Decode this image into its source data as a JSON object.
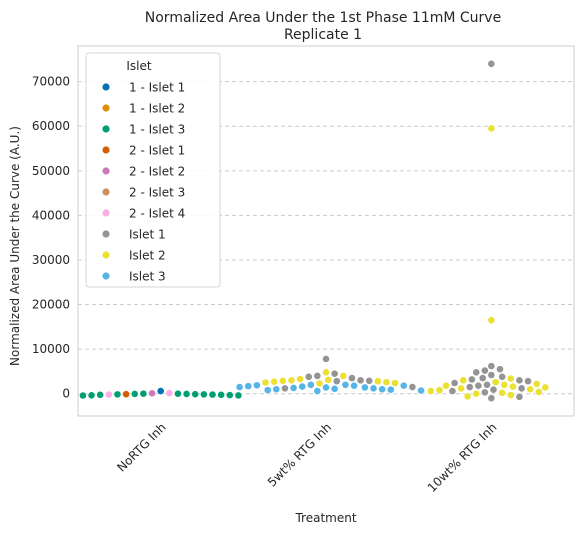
{
  "chart_data": {
    "type": "scatter",
    "kind": "swarm",
    "title": "Normalized Area Under the 1st Phase 11mM Curve",
    "subtitle": "Replicate 1",
    "xlabel": "Treatment",
    "ylabel": "Normalized Area Under the Curve (A.U.)",
    "categories": [
      "NoRTG Inh",
      "5wt% RTG Inh",
      "10wt% RTG Inh"
    ],
    "ylim": [
      -5000,
      78000
    ],
    "yticks": [
      0,
      10000,
      20000,
      30000,
      40000,
      50000,
      60000,
      70000
    ],
    "ytick_labels": [
      "0",
      "10000",
      "20000",
      "30000",
      "40000",
      "50000",
      "60000",
      "70000"
    ],
    "grid": "horizontal dashed",
    "legend": {
      "title": "Islet",
      "position": "top-left",
      "entries": [
        {
          "label": "1 - Islet 1",
          "color": "#0173b2"
        },
        {
          "label": "1 - Islet 2",
          "color": "#de8f05"
        },
        {
          "label": "1 - Islet 3",
          "color": "#029e73"
        },
        {
          "label": "2 - Islet 1",
          "color": "#d55e00"
        },
        {
          "label": "2 - Islet 2",
          "color": "#cc78bc"
        },
        {
          "label": "2 - Islet 3",
          "color": "#ca9161"
        },
        {
          "label": "2 - Islet 4",
          "color": "#fbafe4"
        },
        {
          "label": "Islet 1",
          "color": "#949494"
        },
        {
          "label": "Islet 2",
          "color": "#ece133"
        },
        {
          "label": "Islet 3",
          "color": "#56b4e9"
        }
      ]
    },
    "series": [
      {
        "name": "1 - Islet 1",
        "points": [
          {
            "x": "NoRTG Inh",
            "y": 600
          }
        ]
      },
      {
        "name": "1 - Islet 3",
        "points": [
          {
            "x": "NoRTG Inh",
            "y": 0
          },
          {
            "x": "NoRTG Inh",
            "y": -50
          },
          {
            "x": "NoRTG Inh",
            "y": -100
          },
          {
            "x": "NoRTG Inh",
            "y": -150
          },
          {
            "x": "NoRTG Inh",
            "y": -200
          },
          {
            "x": "NoRTG Inh",
            "y": -250
          },
          {
            "x": "NoRTG Inh",
            "y": -300
          },
          {
            "x": "NoRTG Inh",
            "y": -350
          },
          {
            "x": "NoRTG Inh",
            "y": -400
          },
          {
            "x": "NoRTG Inh",
            "y": -380
          },
          {
            "x": "NoRTG Inh",
            "y": -250
          },
          {
            "x": "NoRTG Inh",
            "y": -150
          },
          {
            "x": "NoRTG Inh",
            "y": -50
          },
          {
            "x": "NoRTG Inh",
            "y": 0
          }
        ]
      },
      {
        "name": "2 - Islet 1",
        "points": [
          {
            "x": "NoRTG Inh",
            "y": -100
          }
        ]
      },
      {
        "name": "2 - Islet 2",
        "points": [
          {
            "x": "NoRTG Inh",
            "y": 100
          }
        ]
      },
      {
        "name": "2 - Islet 4",
        "points": [
          {
            "x": "NoRTG Inh",
            "y": -200
          },
          {
            "x": "NoRTG Inh",
            "y": 150
          }
        ]
      },
      {
        "name": "Islet 1",
        "points": [
          {
            "x": "5wt% RTG Inh",
            "y": 7800
          },
          {
            "x": "5wt% RTG Inh",
            "y": 4500
          },
          {
            "x": "5wt% RTG Inh",
            "y": 4000
          },
          {
            "x": "5wt% RTG Inh",
            "y": 3800
          },
          {
            "x": "5wt% RTG Inh",
            "y": 3500
          },
          {
            "x": "5wt% RTG Inh",
            "y": 3000
          },
          {
            "x": "5wt% RTG Inh",
            "y": 2900
          },
          {
            "x": "5wt% RTG Inh",
            "y": 2800
          },
          {
            "x": "5wt% RTG Inh",
            "y": 1500
          },
          {
            "x": "5wt% RTG Inh",
            "y": 1200
          },
          {
            "x": "10wt% RTG Inh",
            "y": 74000
          },
          {
            "x": "10wt% RTG Inh",
            "y": 6200
          },
          {
            "x": "10wt% RTG Inh",
            "y": 5500
          },
          {
            "x": "10wt% RTG Inh",
            "y": 5200
          },
          {
            "x": "10wt% RTG Inh",
            "y": 4800
          },
          {
            "x": "10wt% RTG Inh",
            "y": 4200
          },
          {
            "x": "10wt% RTG Inh",
            "y": 3800
          },
          {
            "x": "10wt% RTG Inh",
            "y": 3500
          },
          {
            "x": "10wt% RTG Inh",
            "y": 3200
          },
          {
            "x": "10wt% RTG Inh",
            "y": 3000
          },
          {
            "x": "10wt% RTG Inh",
            "y": 2800
          },
          {
            "x": "10wt% RTG Inh",
            "y": 2400
          },
          {
            "x": "10wt% RTG Inh",
            "y": 2000
          },
          {
            "x": "10wt% RTG Inh",
            "y": 1800
          },
          {
            "x": "10wt% RTG Inh",
            "y": 1500
          },
          {
            "x": "10wt% RTG Inh",
            "y": 1200
          },
          {
            "x": "10wt% RTG Inh",
            "y": 900
          },
          {
            "x": "10wt% RTG Inh",
            "y": 600
          },
          {
            "x": "10wt% RTG Inh",
            "y": 300
          },
          {
            "x": "10wt% RTG Inh",
            "y": -700
          },
          {
            "x": "10wt% RTG Inh",
            "y": -1000
          }
        ]
      },
      {
        "name": "Islet 2",
        "points": [
          {
            "x": "5wt% RTG Inh",
            "y": 4800
          },
          {
            "x": "5wt% RTG Inh",
            "y": 4000
          },
          {
            "x": "5wt% RTG Inh",
            "y": 3300
          },
          {
            "x": "5wt% RTG Inh",
            "y": 3100
          },
          {
            "x": "5wt% RTG Inh",
            "y": 3000
          },
          {
            "x": "5wt% RTG Inh",
            "y": 2900
          },
          {
            "x": "5wt% RTG Inh",
            "y": 2800
          },
          {
            "x": "5wt% RTG Inh",
            "y": 2700
          },
          {
            "x": "5wt% RTG Inh",
            "y": 2600
          },
          {
            "x": "5wt% RTG Inh",
            "y": 2500
          },
          {
            "x": "5wt% RTG Inh",
            "y": 2400
          },
          {
            "x": "5wt% RTG Inh",
            "y": 2300
          },
          {
            "x": "10wt% RTG Inh",
            "y": 59500
          },
          {
            "x": "10wt% RTG Inh",
            "y": 16500
          },
          {
            "x": "10wt% RTG Inh",
            "y": 3400
          },
          {
            "x": "10wt% RTG Inh",
            "y": 3000
          },
          {
            "x": "10wt% RTG Inh",
            "y": 2600
          },
          {
            "x": "10wt% RTG Inh",
            "y": 2200
          },
          {
            "x": "10wt% RTG Inh",
            "y": 2000
          },
          {
            "x": "10wt% RTG Inh",
            "y": 1800
          },
          {
            "x": "10wt% RTG Inh",
            "y": 1600
          },
          {
            "x": "10wt% RTG Inh",
            "y": 1400
          },
          {
            "x": "10wt% RTG Inh",
            "y": 1200
          },
          {
            "x": "10wt% RTG Inh",
            "y": 1000
          },
          {
            "x": "10wt% RTG Inh",
            "y": 800
          },
          {
            "x": "10wt% RTG Inh",
            "y": 600
          },
          {
            "x": "10wt% RTG Inh",
            "y": 400
          },
          {
            "x": "10wt% RTG Inh",
            "y": 200
          },
          {
            "x": "10wt% RTG Inh",
            "y": 0
          },
          {
            "x": "10wt% RTG Inh",
            "y": -300
          },
          {
            "x": "10wt% RTG Inh",
            "y": -600
          }
        ]
      },
      {
        "name": "Islet 3",
        "points": [
          {
            "x": "5wt% RTG Inh",
            "y": 2000
          },
          {
            "x": "5wt% RTG Inh",
            "y": 1900
          },
          {
            "x": "5wt% RTG Inh",
            "y": 1800
          },
          {
            "x": "5wt% RTG Inh",
            "y": 1700
          },
          {
            "x": "5wt% RTG Inh",
            "y": 1600
          },
          {
            "x": "5wt% RTG Inh",
            "y": 1500
          },
          {
            "x": "5wt% RTG Inh",
            "y": 1400
          },
          {
            "x": "5wt% RTG Inh",
            "y": 1300
          },
          {
            "x": "5wt% RTG Inh",
            "y": 1200
          },
          {
            "x": "5wt% RTG Inh",
            "y": 1100
          },
          {
            "x": "5wt% RTG Inh",
            "y": 1000
          },
          {
            "x": "5wt% RTG Inh",
            "y": 900
          },
          {
            "x": "5wt% RTG Inh",
            "y": 800
          },
          {
            "x": "5wt% RTG Inh",
            "y": 700
          },
          {
            "x": "5wt% RTG Inh",
            "y": 600
          },
          {
            "x": "5wt% RTG Inh",
            "y": 1000
          },
          {
            "x": "5wt% RTG Inh",
            "y": 1400
          },
          {
            "x": "5wt% RTG Inh",
            "y": 1800
          },
          {
            "x": "5wt% RTG Inh",
            "y": 2000
          }
        ]
      }
    ]
  }
}
